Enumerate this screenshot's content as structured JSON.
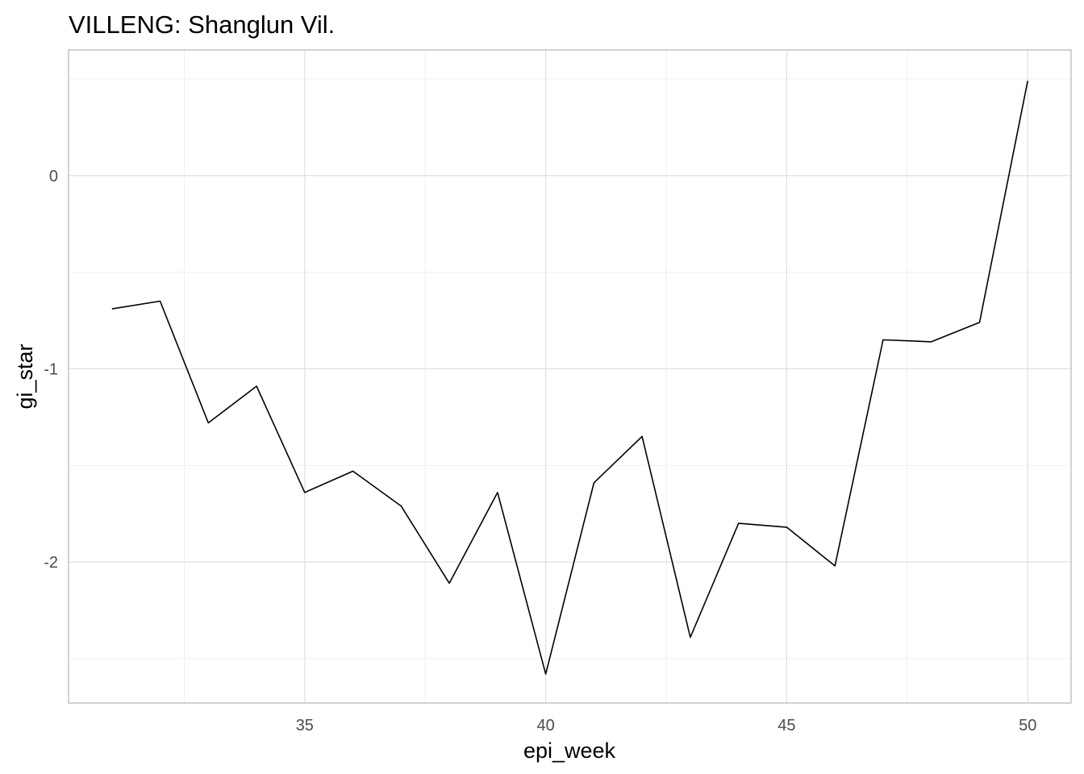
{
  "chart_data": {
    "type": "line",
    "title": "VILLENG: Shanglun Vil.",
    "xlabel": "epi_week",
    "ylabel": "gi_star",
    "xlim": [
      30.1,
      50.9
    ],
    "ylim": [
      -2.73,
      0.65
    ],
    "x_ticks": [
      35,
      40,
      45,
      50
    ],
    "x_tick_labels": [
      "35",
      "40",
      "45",
      "50"
    ],
    "y_ticks": [
      0,
      -1,
      -2
    ],
    "y_tick_labels": [
      "0",
      "-1",
      "-2"
    ],
    "grid": true,
    "legend": "none",
    "line_color": "#000000",
    "series": [
      {
        "x": [
          31,
          32,
          33,
          34,
          35,
          36,
          37,
          38,
          39,
          40,
          41,
          42,
          43,
          44,
          45,
          46,
          47,
          48,
          49,
          50
        ],
        "values": [
          -0.69,
          -0.65,
          -1.28,
          -1.09,
          -1.64,
          -1.53,
          -1.71,
          -2.11,
          -1.64,
          -2.58,
          -1.59,
          -1.35,
          -2.39,
          -1.8,
          -1.82,
          -2.02,
          -0.85,
          -0.86,
          -0.76,
          0.49
        ]
      }
    ]
  }
}
